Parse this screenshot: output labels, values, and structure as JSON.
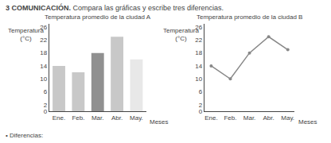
{
  "title": "3 COMUNICACIÓN.",
  "subtitle": " Compara las gráficas y escribe tres diferencias.",
  "annotations": [
    "• Diferencias:"
  ],
  "chart_data": [
    {
      "type": "bar",
      "title": "Temperatura promedio de la ciudad A",
      "xlabel": "Meses",
      "ylabel": "Temperatura\n(°C)",
      "categories": [
        "Ene.",
        "Feb.",
        "Mar.",
        "Abr.",
        "May."
      ],
      "values": [
        14,
        12,
        18,
        23,
        16
      ],
      "colors": [
        "#c8c8c8",
        "#c8c8c8",
        "#909090",
        "#c8c8c8",
        "#e8e8e8"
      ],
      "ylim": [
        0,
        27
      ],
      "yticks": [
        0,
        2,
        6,
        10,
        14,
        18,
        22,
        26
      ],
      "grid": false
    },
    {
      "type": "line",
      "title": "Temperatura promedio de la ciudad B",
      "xlabel": "Meses",
      "ylabel": "Temperatura\n(°C)",
      "categories": [
        "Ene.",
        "Feb.",
        "Mar.",
        "Abr.",
        "May."
      ],
      "values": [
        14,
        10,
        18,
        23,
        19
      ],
      "color": "#888888",
      "marker": "circle",
      "ylim": [
        0,
        27
      ],
      "yticks": [
        0,
        2,
        6,
        10,
        14,
        18,
        22,
        26
      ],
      "grid": false
    }
  ]
}
